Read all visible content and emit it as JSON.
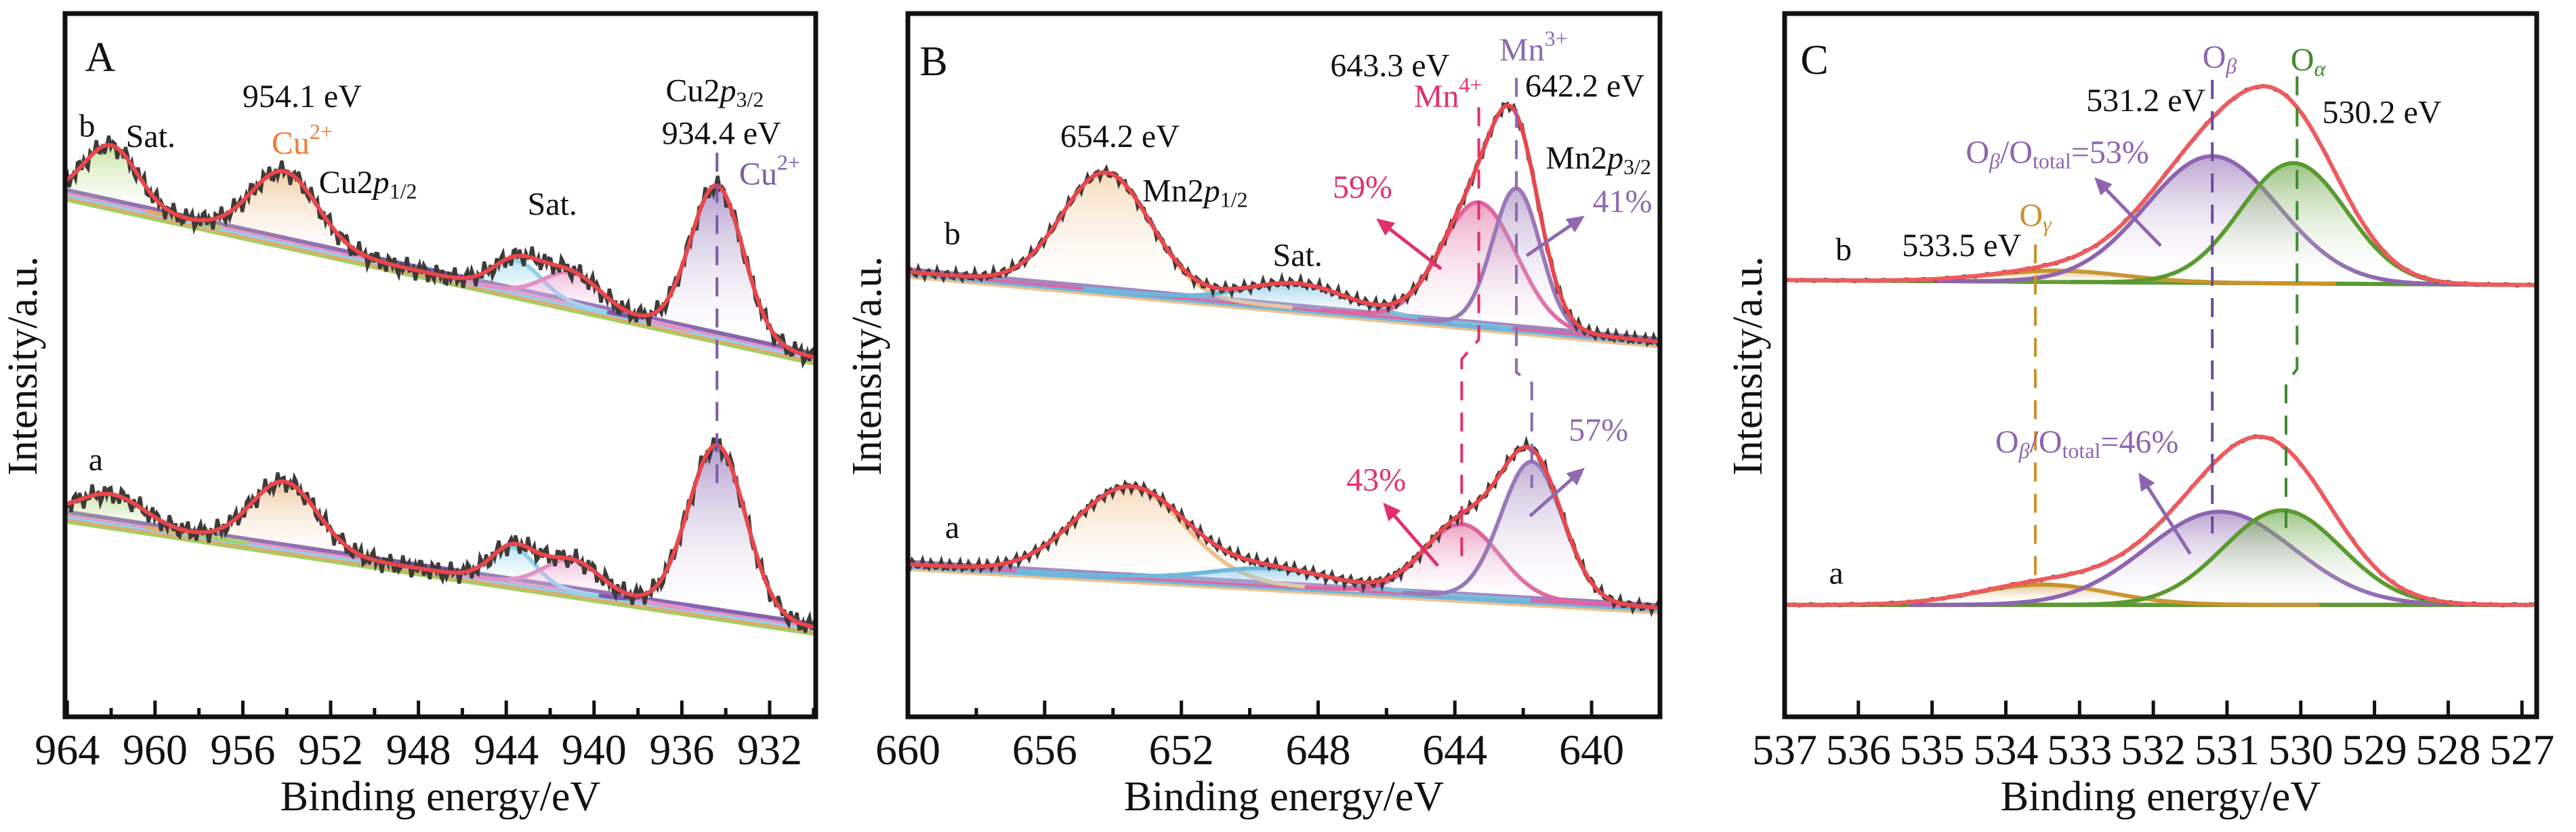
{
  "chart_data": [
    {
      "type": "line",
      "panel_label": "A",
      "xlabel": "Binding energy/eV",
      "ylabel": "Intensity/a.u.",
      "xlim": [
        964.1,
        929.9
      ],
      "ylim": [
        0,
        100
      ],
      "xticks": [
        964,
        960,
        956,
        952,
        948,
        944,
        940,
        936,
        932
      ],
      "xtick_labels": [
        "964",
        "960",
        "956",
        "952",
        "948",
        "944",
        "940",
        "936",
        "932"
      ],
      "minor_xticks": [
        962,
        958,
        954,
        950,
        946,
        942,
        938,
        934,
        930
      ],
      "grid": false,
      "fit_color": "#e8474c",
      "data_color": "#3d3a38",
      "samples": [
        {
          "id": "b",
          "baseline": [
            74.8,
            51.3
          ],
          "components": [
            {
              "center": 962.0,
              "amplitude": 8.3,
              "sigma": 1.2,
              "color": "#9fcf62"
            },
            {
              "center": 954.1,
              "amplitude": 10.0,
              "sigma": 1.5,
              "color": "#e4a868"
            },
            {
              "center": 943.5,
              "amplitude": 4.5,
              "sigma": 1.1,
              "color": "#8ed2ec"
            },
            {
              "center": 941.0,
              "amplitude": 4.5,
              "sigma": 1.3,
              "color": "#e490c4"
            },
            {
              "center": 934.4,
              "amplitude": 21.5,
              "sigma": 1.2,
              "color": "#7e5aaa"
            }
          ]
        },
        {
          "id": "a",
          "baseline": [
            28.8,
            12.7
          ],
          "components": [
            {
              "center": 962.0,
              "amplitude": 4.0,
              "sigma": 1.5,
              "color": "#9fcf62"
            },
            {
              "center": 954.1,
              "amplitude": 9.5,
              "sigma": 1.5,
              "color": "#e4a868"
            },
            {
              "center": 943.7,
              "amplitude": 5.0,
              "sigma": 1.0,
              "color": "#8ed2ec"
            },
            {
              "center": 941.0,
              "amplitude": 4.5,
              "sigma": 1.3,
              "color": "#e490c4"
            },
            {
              "center": 934.4,
              "amplitude": 24.0,
              "sigma": 1.3,
              "color": "#7e5aaa"
            }
          ]
        }
      ],
      "annotations": [
        {
          "x": 963.1,
          "y": 84.0,
          "color": "#111111",
          "parts": [
            {
              "t": "b"
            }
          ]
        },
        {
          "x": 960.2,
          "y": 82.5,
          "color": "#111111",
          "parts": [
            {
              "t": "Sat."
            }
          ]
        },
        {
          "x": 953.3,
          "y": 88.2,
          "color": "#111111",
          "parts": [
            {
              "t": "954.1 eV"
            }
          ]
        },
        {
          "x": 953.3,
          "y": 81.5,
          "color": "#f07a32",
          "parts": [
            {
              "t": "Cu"
            },
            {
              "t": "2+",
              "s": "sup"
            }
          ]
        },
        {
          "x": 950.3,
          "y": 75.9,
          "color": "#111111",
          "parts": [
            {
              "t": "Cu2"
            },
            {
              "t": "p",
              "s": "i"
            },
            {
              "t": "1/2",
              "s": "sub"
            }
          ]
        },
        {
          "x": 941.9,
          "y": 72.8,
          "color": "#111111",
          "parts": [
            {
              "t": "Sat."
            }
          ]
        },
        {
          "x": 934.5,
          "y": 89.0,
          "color": "#111111",
          "parts": [
            {
              "t": "Cu2"
            },
            {
              "t": "p",
              "s": "i"
            },
            {
              "t": "3/2",
              "s": "sub"
            }
          ]
        },
        {
          "x": 934.2,
          "y": 82.9,
          "color": "#111111",
          "parts": [
            {
              "t": "934.4 eV"
            }
          ]
        },
        {
          "x": 932.0,
          "y": 77.1,
          "color": "#7b5aa6",
          "parts": [
            {
              "t": "Cu"
            },
            {
              "t": "2+",
              "s": "sup"
            }
          ]
        },
        {
          "x": 962.7,
          "y": 36.3,
          "color": "#111111",
          "parts": [
            {
              "t": "a"
            }
          ]
        }
      ],
      "guides": [
        {
          "color": "#7e5aaa",
          "points": [
            [
              934.4,
              80.6
            ],
            [
              934.4,
              33.4
            ]
          ]
        }
      ],
      "arrows": []
    },
    {
      "type": "line",
      "panel_label": "B",
      "xlabel": "Binding energy/eV",
      "ylabel": "Intensity/a.u.",
      "xlim": [
        660,
        638
      ],
      "ylim": [
        0,
        100
      ],
      "xticks": [
        660,
        656,
        652,
        648,
        644,
        640
      ],
      "xtick_labels": [
        "660",
        "656",
        "652",
        "648",
        "644",
        "640"
      ],
      "minor_xticks": [
        658,
        654,
        650,
        646,
        642
      ],
      "grid": false,
      "fit_color": "#e8474c",
      "data_color": "#3d3a38",
      "samples": [
        {
          "id": "b",
          "baseline": [
            63.6,
            53.6
          ],
          "components": [
            {
              "center": 654.2,
              "amplitude": 16.8,
              "sigma": 1.3,
              "color": "#f0c08c"
            },
            {
              "center": 648.6,
              "amplitude": 3.5,
              "sigma": 1.5,
              "color": "#6cb8dc"
            },
            {
              "center": 643.3,
              "amplitude": 17.5,
              "sigma": 1.1,
              "color": "#e0629e"
            },
            {
              "center": 642.2,
              "amplitude": 20.0,
              "sigma": 0.7,
              "color": "#9a78b8"
            }
          ]
        },
        {
          "id": "a",
          "baseline": [
            21.8,
            15.6
          ],
          "components": [
            {
              "center": 653.5,
              "amplitude": 12.8,
              "sigma": 1.6,
              "color": "#f0c08c"
            },
            {
              "center": 649.3,
              "amplitude": 2.4,
              "sigma": 1.8,
              "color": "#6cb8dc"
            },
            {
              "center": 643.8,
              "amplitude": 10.3,
              "sigma": 1.1,
              "color": "#e0629e"
            },
            {
              "center": 641.75,
              "amplitude": 19.8,
              "sigma": 0.9,
              "color": "#9a78b8"
            }
          ]
        }
      ],
      "annotations": [
        {
          "x": 658.7,
          "y": 68.6,
          "color": "#111111",
          "parts": [
            {
              "t": "b"
            }
          ]
        },
        {
          "x": 653.8,
          "y": 82.5,
          "color": "#111111",
          "parts": [
            {
              "t": "654.2 eV"
            }
          ]
        },
        {
          "x": 651.6,
          "y": 74.7,
          "color": "#111111",
          "parts": [
            {
              "t": "Mn2"
            },
            {
              "t": "p",
              "s": "i"
            },
            {
              "t": "1/2",
              "s": "sub"
            }
          ]
        },
        {
          "x": 648.6,
          "y": 65.5,
          "color": "#111111",
          "parts": [
            {
              "t": "Sat."
            }
          ]
        },
        {
          "x": 645.9,
          "y": 92.6,
          "color": "#111111",
          "parts": [
            {
              "t": "643.3 eV"
            }
          ]
        },
        {
          "x": 641.7,
          "y": 94.8,
          "color": "#8e6aae",
          "parts": [
            {
              "t": "Mn"
            },
            {
              "t": "3+",
              "s": "sup"
            }
          ]
        },
        {
          "x": 644.2,
          "y": 88.2,
          "color": "#e0306e",
          "parts": [
            {
              "t": "Mn"
            },
            {
              "t": "4+",
              "s": "sup"
            }
          ]
        },
        {
          "x": 640.2,
          "y": 89.7,
          "color": "#111111",
          "parts": [
            {
              "t": "642.2 eV"
            }
          ]
        },
        {
          "x": 639.8,
          "y": 79.4,
          "color": "#111111",
          "parts": [
            {
              "t": "Mn2"
            },
            {
              "t": "p",
              "s": "i"
            },
            {
              "t": "3/2",
              "s": "sub"
            }
          ]
        },
        {
          "x": 646.7,
          "y": 75.2,
          "color": "#e0306e",
          "parts": [
            {
              "t": "59%"
            }
          ]
        },
        {
          "x": 639.1,
          "y": 73.2,
          "color": "#8e6aae",
          "parts": [
            {
              "t": "41%"
            }
          ]
        },
        {
          "x": 658.7,
          "y": 26.6,
          "color": "#111111",
          "parts": [
            {
              "t": "a"
            }
          ]
        },
        {
          "x": 646.3,
          "y": 33.4,
          "color": "#e0306e",
          "parts": [
            {
              "t": "43%"
            }
          ]
        },
        {
          "x": 639.8,
          "y": 40.5,
          "color": "#8e6aae",
          "parts": [
            {
              "t": "57%"
            }
          ]
        }
      ],
      "guides": [
        {
          "color": "#e0306e",
          "points": [
            [
              643.3,
              87.1
            ],
            [
              643.3,
              53.9
            ],
            [
              643.8,
              51.1
            ],
            [
              643.8,
              22.0
            ]
          ]
        },
        {
          "color": "#8e6aae",
          "points": [
            [
              642.2,
              91.3
            ],
            [
              642.2,
              49.2
            ],
            [
              641.75,
              47.7
            ],
            [
              641.75,
              32.7
            ]
          ]
        }
      ],
      "arrows": [
        {
          "color": "#e0306e",
          "from": [
            644.4,
            64.0
          ],
          "to": [
            646.3,
            71.2
          ]
        },
        {
          "color": "#8e6aae",
          "from": [
            641.9,
            65.9
          ],
          "to": [
            640.2,
            71.6
          ]
        },
        {
          "color": "#e0306e",
          "from": [
            644.5,
            21.6
          ],
          "to": [
            646.1,
            30.6
          ]
        },
        {
          "color": "#8e6aae",
          "from": [
            641.8,
            28.7
          ],
          "to": [
            640.2,
            35.6
          ]
        }
      ]
    },
    {
      "type": "line",
      "panel_label": "C",
      "xlabel": "Binding energy/eV",
      "ylabel": "Intensity/a.u.",
      "xlim": [
        537,
        526.8
      ],
      "ylim": [
        0,
        100
      ],
      "xticks": [
        537,
        536,
        535,
        534,
        533,
        532,
        531,
        530,
        529,
        528,
        527
      ],
      "xtick_labels": [
        "537",
        "536",
        "535",
        "534",
        "533",
        "532",
        "531",
        "530",
        "529",
        "528",
        "527"
      ],
      "minor_xticks": [],
      "grid": false,
      "fit_color": "#ee5a5e",
      "data_color": "#3d3a38",
      "samples": [
        {
          "id": "b",
          "baseline": [
            62.4,
            61.7
          ],
          "components": [
            {
              "center": 533.3,
              "amplitude": 1.6,
              "sigma": 0.9,
              "color": "#c8922a"
            },
            {
              "center": 531.2,
              "amplitude": 18.1,
              "sigma": 0.9,
              "color": "#8e64b0"
            },
            {
              "center": 530.1,
              "amplitude": 17.2,
              "sigma": 0.72,
              "color": "#5a9a30"
            }
          ]
        },
        {
          "id": "a",
          "baseline": [
            16.0,
            16.0
          ],
          "components": [
            {
              "center": 533.5,
              "amplitude": 2.9,
              "sigma": 0.9,
              "color": "#c8922a"
            },
            {
              "center": 531.1,
              "amplitude": 13.3,
              "sigma": 1.0,
              "color": "#8e64b0"
            },
            {
              "center": 530.25,
              "amplitude": 13.5,
              "sigma": 0.8,
              "color": "#5a9a30"
            }
          ]
        }
      ],
      "annotations": [
        {
          "x": 536.2,
          "y": 66.3,
          "color": "#111111",
          "parts": [
            {
              "t": "b"
            }
          ]
        },
        {
          "x": 534.6,
          "y": 66.9,
          "color": "#111111",
          "parts": [
            {
              "t": "533.5 eV"
            }
          ]
        },
        {
          "x": 533.6,
          "y": 71.2,
          "color": "#c8922a",
          "parts": [
            {
              "t": "O"
            },
            {
              "t": "γ",
              "s": "isub"
            }
          ]
        },
        {
          "x": 533.3,
          "y": 80.2,
          "color": "#8e64b0",
          "parts": [
            {
              "t": "O"
            },
            {
              "t": "β",
              "s": "isub"
            },
            {
              "t": "/O"
            },
            {
              "t": "total",
              "s": "sub"
            },
            {
              "t": "=53%"
            }
          ]
        },
        {
          "x": 532.1,
          "y": 87.6,
          "color": "#111111",
          "parts": [
            {
              "t": "531.2 eV"
            }
          ]
        },
        {
          "x": 531.1,
          "y": 93.8,
          "color": "#8e64b0",
          "parts": [
            {
              "t": "O"
            },
            {
              "t": "β",
              "s": "isub"
            }
          ]
        },
        {
          "x": 529.9,
          "y": 93.4,
          "color": "#3f8a30",
          "parts": [
            {
              "t": "O"
            },
            {
              "t": "α",
              "s": "isub"
            }
          ]
        },
        {
          "x": 528.9,
          "y": 85.9,
          "color": "#111111",
          "parts": [
            {
              "t": "530.2 eV"
            }
          ]
        },
        {
          "x": 536.3,
          "y": 20.1,
          "color": "#111111",
          "parts": [
            {
              "t": "a"
            }
          ]
        },
        {
          "x": 532.9,
          "y": 38.8,
          "color": "#8e64b0",
          "parts": [
            {
              "t": "O"
            },
            {
              "t": "β",
              "s": "isub"
            },
            {
              "t": "/O"
            },
            {
              "t": "total",
              "s": "sub"
            },
            {
              "t": "=46%"
            }
          ]
        }
      ],
      "guides": [
        {
          "color": "#c8922a",
          "points": [
            [
              533.6,
              67.5
            ],
            [
              533.6,
              19.2
            ]
          ]
        },
        {
          "color": "#6a4aa0",
          "points": [
            [
              531.2,
              91.0
            ],
            [
              531.2,
              26.2
            ]
          ]
        },
        {
          "color": "#3f8a30",
          "points": [
            [
              530.05,
              91.5
            ],
            [
              530.05,
              49.7
            ],
            [
              530.2,
              47.6
            ],
            [
              530.2,
              25.6
            ]
          ]
        }
      ],
      "arrows": [
        {
          "color": "#8e64b0",
          "from": [
            531.9,
            67.3
          ],
          "to": [
            532.8,
            77.1
          ]
        },
        {
          "color": "#8e64b0",
          "from": [
            531.5,
            23.3
          ],
          "to": [
            532.2,
            34.9
          ]
        }
      ]
    }
  ]
}
